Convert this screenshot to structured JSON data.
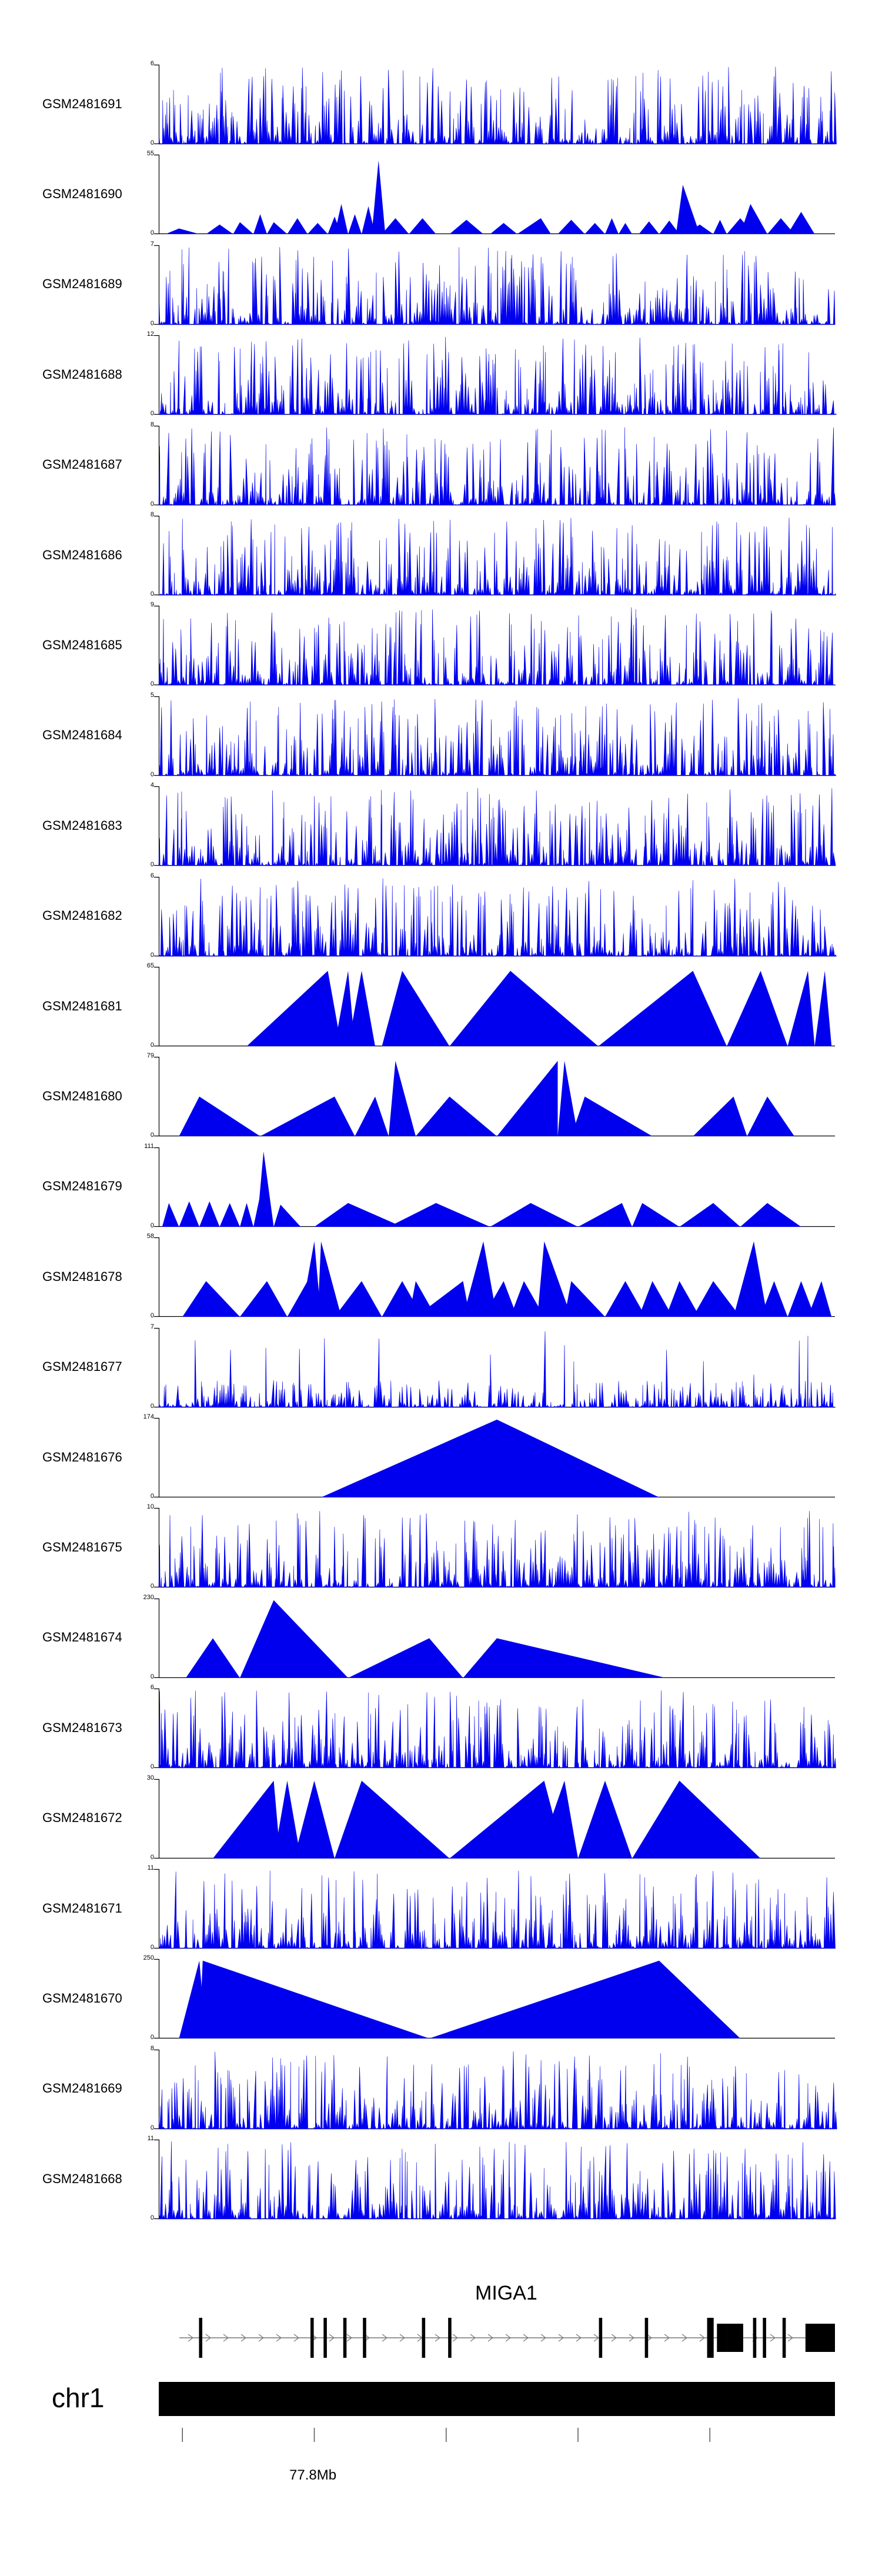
{
  "chart_data": {
    "type": "area",
    "title": "",
    "xlabel": "",
    "ylabel": "",
    "region": {
      "chromosome": "chr1",
      "start_mb": 77.76,
      "end_mb": 77.98
    },
    "series": [
      {
        "name": "GSM2481691",
        "ymin": 0,
        "ymax": 6,
        "pattern": "dense",
        "seed": 11
      },
      {
        "name": "GSM2481690",
        "ymin": 0,
        "ymax": 55,
        "pattern": "sparse",
        "peaks": [
          [
            0.01,
            0.06,
            0.03,
            0.07
          ],
          [
            0.07,
            0.11,
            0.09,
            0.12
          ],
          [
            0.11,
            0.14,
            0.12,
            0.15
          ],
          [
            0.14,
            0.16,
            0.15,
            0.25
          ],
          [
            0.16,
            0.19,
            0.17,
            0.15
          ],
          [
            0.19,
            0.22,
            0.205,
            0.2
          ],
          [
            0.22,
            0.25,
            0.235,
            0.14
          ],
          [
            0.25,
            0.27,
            0.26,
            0.22
          ],
          [
            0.26,
            0.28,
            0.27,
            0.38
          ],
          [
            0.28,
            0.3,
            0.29,
            0.25
          ],
          [
            0.3,
            0.32,
            0.31,
            0.35
          ],
          [
            0.315,
            0.335,
            0.325,
            0.93
          ],
          [
            0.33,
            0.37,
            0.35,
            0.2
          ],
          [
            0.37,
            0.41,
            0.39,
            0.2
          ],
          [
            0.43,
            0.48,
            0.455,
            0.18
          ],
          [
            0.49,
            0.53,
            0.51,
            0.14
          ],
          [
            0.53,
            0.58,
            0.565,
            0.2
          ],
          [
            0.59,
            0.63,
            0.61,
            0.18
          ],
          [
            0.63,
            0.66,
            0.645,
            0.14
          ],
          [
            0.66,
            0.68,
            0.67,
            0.2
          ],
          [
            0.68,
            0.7,
            0.69,
            0.14
          ],
          [
            0.71,
            0.74,
            0.725,
            0.16
          ],
          [
            0.74,
            0.77,
            0.755,
            0.17
          ],
          [
            0.765,
            0.8,
            0.775,
            0.62
          ],
          [
            0.78,
            0.82,
            0.8,
            0.12
          ],
          [
            0.82,
            0.84,
            0.83,
            0.18
          ],
          [
            0.84,
            0.88,
            0.86,
            0.2
          ],
          [
            0.86,
            0.9,
            0.875,
            0.38
          ],
          [
            0.9,
            0.94,
            0.92,
            0.2
          ],
          [
            0.93,
            0.97,
            0.95,
            0.28
          ]
        ]
      },
      {
        "name": "GSM2481689",
        "ymin": 0,
        "ymax": 7,
        "pattern": "dense",
        "seed": 23
      },
      {
        "name": "GSM2481688",
        "ymin": 0,
        "ymax": 12,
        "pattern": "dense-peak",
        "seed": 37,
        "peak_at": 0.03,
        "peak_h": 0.95
      },
      {
        "name": "GSM2481687",
        "ymin": 0,
        "ymax": 8,
        "pattern": "dense",
        "seed": 41
      },
      {
        "name": "GSM2481686",
        "ymin": 0,
        "ymax": 8,
        "pattern": "dense-peak",
        "seed": 53,
        "peak_at": 0.035,
        "peak_h": 0.98
      },
      {
        "name": "GSM2481685",
        "ymin": 0,
        "ymax": 9,
        "pattern": "dense",
        "seed": 61
      },
      {
        "name": "GSM2481684",
        "ymin": 0,
        "ymax": 5,
        "pattern": "dense",
        "seed": 71
      },
      {
        "name": "GSM2481683",
        "ymin": 0,
        "ymax": 4,
        "pattern": "dense",
        "seed": 83
      },
      {
        "name": "GSM2481682",
        "ymin": 0,
        "ymax": 6,
        "pattern": "dense",
        "seed": 97
      },
      {
        "name": "GSM2481681",
        "ymin": 0,
        "ymax": 65,
        "pattern": "sparse",
        "peaks": [
          [
            0.13,
            0.27,
            0.25,
            0.95
          ],
          [
            0.26,
            0.29,
            0.28,
            0.95
          ],
          [
            0.28,
            0.32,
            0.3,
            0.95
          ],
          [
            0.33,
            0.43,
            0.36,
            0.95
          ],
          [
            0.43,
            0.65,
            0.52,
            0.95
          ],
          [
            0.65,
            0.84,
            0.79,
            0.95
          ],
          [
            0.84,
            0.93,
            0.89,
            0.95
          ],
          [
            0.93,
            0.97,
            0.96,
            0.95
          ],
          [
            0.97,
            0.995,
            0.985,
            0.95
          ]
        ]
      },
      {
        "name": "GSM2481680",
        "ymin": 0,
        "ymax": 79,
        "pattern": "sparse",
        "peaks": [
          [
            0.03,
            0.15,
            0.06,
            0.5
          ],
          [
            0.15,
            0.29,
            0.26,
            0.5
          ],
          [
            0.29,
            0.34,
            0.32,
            0.5
          ],
          [
            0.34,
            0.38,
            0.35,
            0.95
          ],
          [
            0.38,
            0.5,
            0.43,
            0.5
          ],
          [
            0.5,
            0.59,
            0.59,
            0.95
          ],
          [
            0.59,
            0.62,
            0.6,
            0.95
          ],
          [
            0.61,
            0.73,
            0.63,
            0.5
          ],
          [
            0.79,
            0.87,
            0.85,
            0.5
          ],
          [
            0.87,
            0.94,
            0.9,
            0.5
          ]
        ]
      },
      {
        "name": "GSM2481679",
        "ymin": 0,
        "ymax": 111,
        "pattern": "sparse",
        "peaks": [
          [
            0.005,
            0.03,
            0.015,
            0.3
          ],
          [
            0.03,
            0.06,
            0.045,
            0.32
          ],
          [
            0.06,
            0.09,
            0.075,
            0.32
          ],
          [
            0.09,
            0.12,
            0.105,
            0.3
          ],
          [
            0.12,
            0.14,
            0.13,
            0.3
          ],
          [
            0.14,
            0.16,
            0.15,
            0.4
          ],
          [
            0.145,
            0.17,
            0.155,
            0.95
          ],
          [
            0.17,
            0.21,
            0.18,
            0.28
          ],
          [
            0.23,
            0.36,
            0.28,
            0.3
          ],
          [
            0.34,
            0.49,
            0.41,
            0.3
          ],
          [
            0.49,
            0.62,
            0.55,
            0.3
          ],
          [
            0.62,
            0.7,
            0.685,
            0.3
          ],
          [
            0.7,
            0.77,
            0.715,
            0.3
          ],
          [
            0.77,
            0.86,
            0.82,
            0.3
          ],
          [
            0.86,
            0.95,
            0.9,
            0.3
          ]
        ]
      },
      {
        "name": "GSM2481678",
        "ymin": 0,
        "ymax": 58,
        "pattern": "sparse",
        "peaks": [
          [
            0.035,
            0.12,
            0.07,
            0.45
          ],
          [
            0.12,
            0.19,
            0.16,
            0.45
          ],
          [
            0.19,
            0.23,
            0.22,
            0.45
          ],
          [
            0.21,
            0.24,
            0.23,
            0.95
          ],
          [
            0.235,
            0.27,
            0.24,
            0.95
          ],
          [
            0.26,
            0.33,
            0.3,
            0.45
          ],
          [
            0.33,
            0.39,
            0.36,
            0.45
          ],
          [
            0.37,
            0.41,
            0.38,
            0.45
          ],
          [
            0.38,
            0.46,
            0.45,
            0.45
          ],
          [
            0.45,
            0.5,
            0.48,
            0.95
          ],
          [
            0.48,
            0.53,
            0.51,
            0.45
          ],
          [
            0.52,
            0.57,
            0.54,
            0.45
          ],
          [
            0.56,
            0.61,
            0.57,
            0.95
          ],
          [
            0.6,
            0.66,
            0.61,
            0.45
          ],
          [
            0.66,
            0.72,
            0.69,
            0.45
          ],
          [
            0.71,
            0.76,
            0.73,
            0.45
          ],
          [
            0.75,
            0.8,
            0.77,
            0.45
          ],
          [
            0.79,
            0.86,
            0.82,
            0.45
          ],
          [
            0.85,
            0.9,
            0.88,
            0.95
          ],
          [
            0.89,
            0.93,
            0.91,
            0.45
          ],
          [
            0.93,
            0.97,
            0.95,
            0.45
          ],
          [
            0.96,
            0.995,
            0.98,
            0.45
          ]
        ]
      },
      {
        "name": "GSM2481677",
        "ymin": 0,
        "ymax": 7,
        "pattern": "dense-low",
        "seed": 109,
        "spikes": [
          [
            0.6,
            0.8
          ],
          [
            0.96,
            0.92
          ],
          [
            0.88,
            0.42
          ]
        ]
      },
      {
        "name": "GSM2481676",
        "ymin": 0,
        "ymax": 174,
        "pattern": "sparse",
        "peaks": [
          [
            0.24,
            0.74,
            0.5,
            0.98
          ]
        ]
      },
      {
        "name": "GSM2481675",
        "ymin": 0,
        "ymax": 10,
        "pattern": "dense",
        "seed": 127
      },
      {
        "name": "GSM2481674",
        "ymin": 0,
        "ymax": 230,
        "pattern": "sparse",
        "peaks": [
          [
            0.04,
            0.12,
            0.08,
            0.5
          ],
          [
            0.12,
            0.28,
            0.17,
            0.98
          ],
          [
            0.28,
            0.45,
            0.4,
            0.5
          ],
          [
            0.45,
            0.75,
            0.5,
            0.5
          ]
        ]
      },
      {
        "name": "GSM2481673",
        "ymin": 0,
        "ymax": 6,
        "pattern": "dense",
        "seed": 139
      },
      {
        "name": "GSM2481672",
        "ymin": 0,
        "ymax": 30,
        "pattern": "sparse",
        "peaks": [
          [
            0.08,
            0.18,
            0.17,
            0.98
          ],
          [
            0.17,
            0.21,
            0.19,
            0.98
          ],
          [
            0.2,
            0.26,
            0.23,
            0.98
          ],
          [
            0.26,
            0.43,
            0.3,
            0.98
          ],
          [
            0.43,
            0.6,
            0.57,
            0.98
          ],
          [
            0.56,
            0.62,
            0.6,
            0.98
          ],
          [
            0.62,
            0.7,
            0.66,
            0.98
          ],
          [
            0.7,
            0.89,
            0.77,
            0.98
          ]
        ]
      },
      {
        "name": "GSM2481671",
        "ymin": 0,
        "ymax": 11,
        "pattern": "dense",
        "seed": 151
      },
      {
        "name": "GSM2481670",
        "ymin": 0,
        "ymax": 250,
        "pattern": "sparse",
        "peaks": [
          [
            0.03,
            0.07,
            0.06,
            0.98
          ],
          [
            0.06,
            0.4,
            0.065,
            0.98
          ],
          [
            0.4,
            0.86,
            0.74,
            0.98
          ]
        ]
      },
      {
        "name": "GSM2481669",
        "ymin": 0,
        "ymax": 8,
        "pattern": "dense",
        "seed": 163
      },
      {
        "name": "GSM2481668",
        "ymin": 0,
        "ymax": 11,
        "pattern": "dense",
        "seed": 173
      }
    ],
    "colors": {
      "signal": "#0000ee",
      "axis": "#000000",
      "gene": "#000000"
    }
  },
  "gene": {
    "name": "MIGA1",
    "strand": "+",
    "exons": [
      [
        0.03,
        0.035
      ],
      [
        0.2,
        0.205
      ],
      [
        0.22,
        0.225
      ],
      [
        0.25,
        0.255
      ],
      [
        0.28,
        0.285
      ],
      [
        0.37,
        0.375
      ],
      [
        0.41,
        0.415
      ],
      [
        0.64,
        0.645
      ],
      [
        0.71,
        0.715
      ],
      [
        0.805,
        0.815
      ],
      [
        0.82,
        0.835
      ],
      [
        0.835,
        0.86
      ],
      [
        0.875,
        0.88
      ],
      [
        0.89,
        0.895
      ],
      [
        0.92,
        0.925
      ],
      [
        0.955,
        1.0
      ]
    ]
  },
  "ideogram": {
    "chromosome": "chr1",
    "position_label": "77.8Mb",
    "position_at": 0.23,
    "ticks": [
      0.035,
      0.23,
      0.425,
      0.62,
      0.815
    ]
  }
}
